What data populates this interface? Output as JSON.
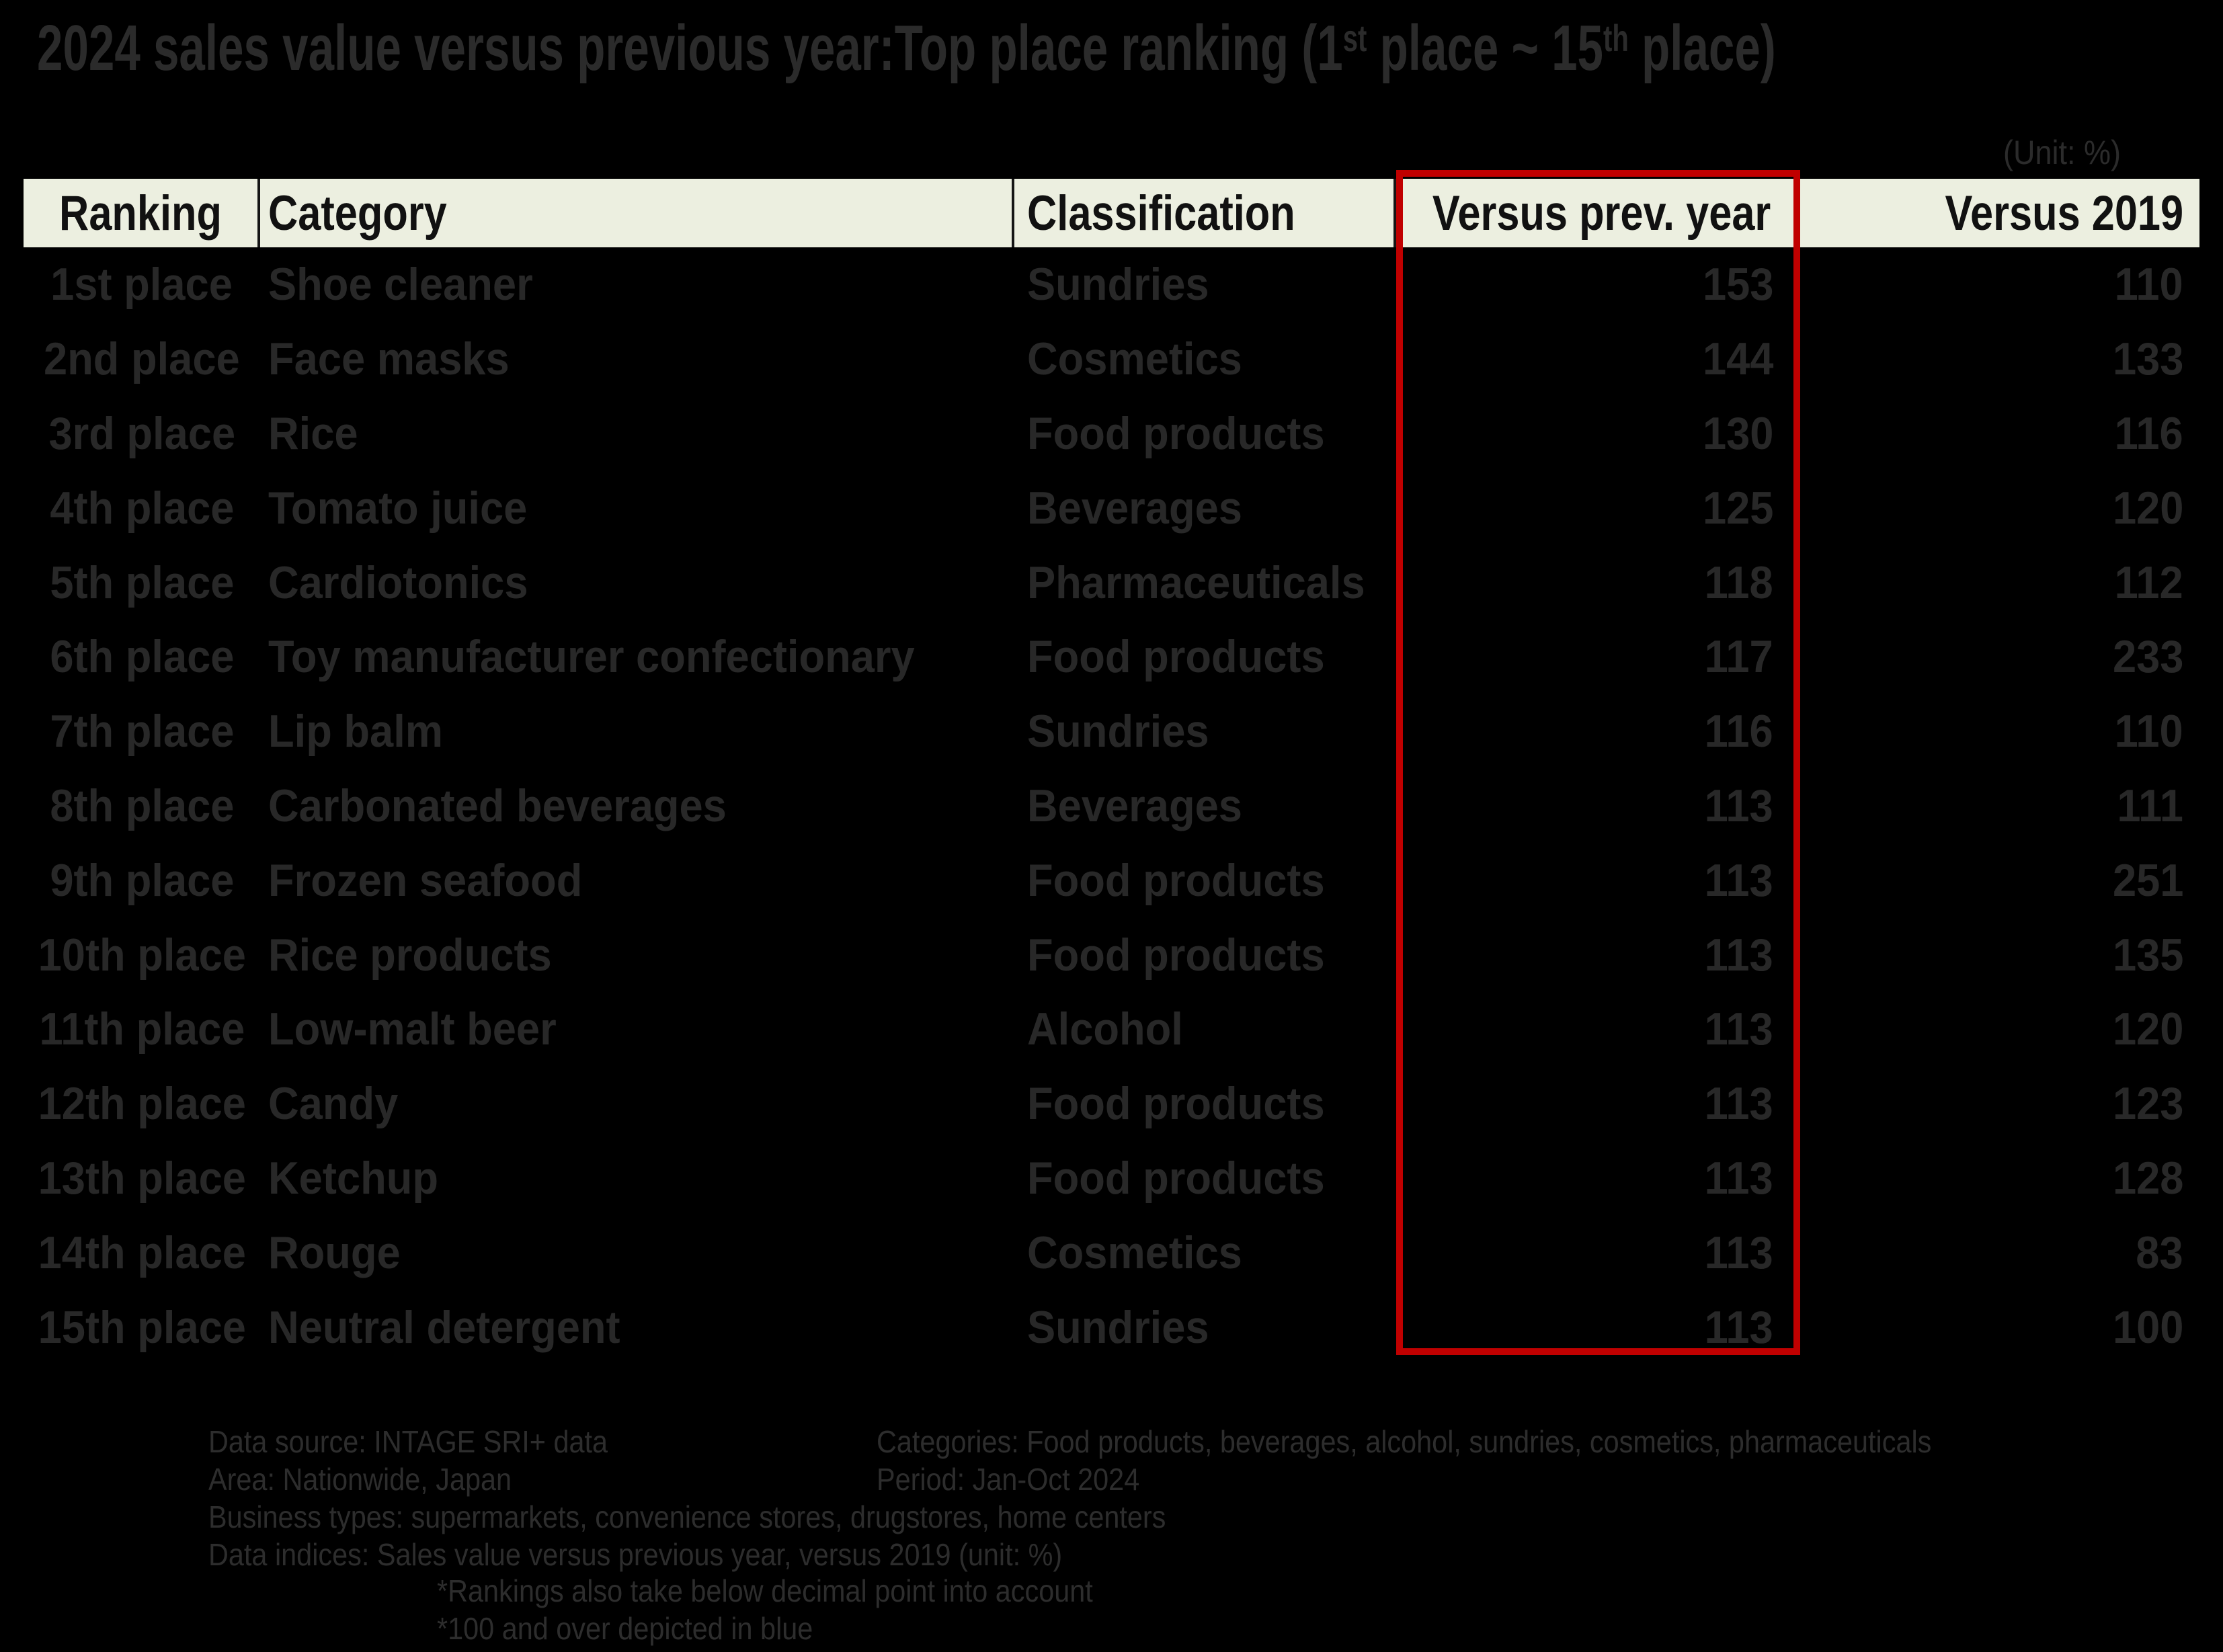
{
  "title": {
    "part1": "2024 sales value versus previous year:Top place ranking (1",
    "sup1": "st",
    "part2": " place ~ 15",
    "sup2": "th",
    "part3": " place)"
  },
  "unit_note": "(Unit: %)",
  "table": {
    "headers": [
      "Ranking",
      "Category",
      "Classification",
      "Versus prev. year",
      "Versus 2019"
    ],
    "rows": [
      {
        "ranking": "1st place",
        "category": "Shoe cleaner",
        "classification": "Sundries",
        "versus_prev_year": "153",
        "versus_2019": "110"
      },
      {
        "ranking": "2nd place",
        "category": "Face masks",
        "classification": "Cosmetics",
        "versus_prev_year": "144",
        "versus_2019": "133"
      },
      {
        "ranking": "3rd place",
        "category": "Rice",
        "classification": "Food products",
        "versus_prev_year": "130",
        "versus_2019": "116"
      },
      {
        "ranking": "4th place",
        "category": "Tomato juice",
        "classification": "Beverages",
        "versus_prev_year": "125",
        "versus_2019": "120"
      },
      {
        "ranking": "5th place",
        "category": "Cardiotonics",
        "classification": "Pharmaceuticals",
        "versus_prev_year": "118",
        "versus_2019": "112"
      },
      {
        "ranking": "6th place",
        "category": "Toy manufacturer confectionary",
        "classification": "Food products",
        "versus_prev_year": "117",
        "versus_2019": "233"
      },
      {
        "ranking": "7th place",
        "category": "Lip balm",
        "classification": "Sundries",
        "versus_prev_year": "116",
        "versus_2019": "110"
      },
      {
        "ranking": "8th place",
        "category": "Carbonated beverages",
        "classification": "Beverages",
        "versus_prev_year": "113",
        "versus_2019": "111"
      },
      {
        "ranking": "9th place",
        "category": "Frozen seafood",
        "classification": "Food products",
        "versus_prev_year": "113",
        "versus_2019": "251"
      },
      {
        "ranking": "10th place",
        "category": "Rice products",
        "classification": "Food products",
        "versus_prev_year": "113",
        "versus_2019": "135"
      },
      {
        "ranking": "11th place",
        "category": "Low-malt beer",
        "classification": "Alcohol",
        "versus_prev_year": "113",
        "versus_2019": "120"
      },
      {
        "ranking": "12th place",
        "category": "Candy",
        "classification": "Food products",
        "versus_prev_year": "113",
        "versus_2019": "123"
      },
      {
        "ranking": "13th place",
        "category": "Ketchup",
        "classification": "Food products",
        "versus_prev_year": "113",
        "versus_2019": "128"
      },
      {
        "ranking": "14th place",
        "category": "Rouge",
        "classification": "Cosmetics",
        "versus_prev_year": "113",
        "versus_2019": "83"
      },
      {
        "ranking": "15th place",
        "category": "Neutral detergent",
        "classification": "Sundries",
        "versus_prev_year": "113",
        "versus_2019": "100"
      }
    ]
  },
  "highlight": {
    "highlighted_column": "Versus prev. year",
    "border_color": "#C00000"
  },
  "footer": {
    "left": [
      "Data source: INTAGE SRI+ data",
      "Area: Nationwide, Japan",
      "Business types: supermarkets, convenience stores, drugstores, home centers",
      "Data indices: Sales value versus previous year, versus 2019 (unit: %)"
    ],
    "right": [
      "Categories: Food products, beverages, alcohol, sundries, cosmetics, pharmaceuticals",
      "Period: Jan-Oct 2024"
    ],
    "notes": [
      "*Rankings also take below decimal point into account",
      "*100 and over depicted in blue"
    ]
  },
  "colors": {
    "background": "#000000",
    "header_background": "#ECEFE0",
    "table_text": "#282828",
    "header_text": "#111111",
    "highlight_border": "#C00000"
  },
  "chart_data": {
    "type": "table",
    "title": "2024 sales value versus previous year:Top place ranking (1st place ~ 15th place)",
    "unit": "%",
    "highlighted_column": "Versus prev. year",
    "columns": [
      "Ranking",
      "Category",
      "Classification",
      "Versus prev. year",
      "Versus 2019"
    ],
    "rows": [
      [
        "1st place",
        "Shoe cleaner",
        "Sundries",
        153,
        110
      ],
      [
        "2nd place",
        "Face masks",
        "Cosmetics",
        144,
        133
      ],
      [
        "3rd place",
        "Rice",
        "Food products",
        130,
        116
      ],
      [
        "4th place",
        "Tomato juice",
        "Beverages",
        125,
        120
      ],
      [
        "5th place",
        "Cardiotonics",
        "Pharmaceuticals",
        118,
        112
      ],
      [
        "6th place",
        "Toy manufacturer confectionary",
        "Food products",
        117,
        233
      ],
      [
        "7th place",
        "Lip balm",
        "Sundries",
        116,
        110
      ],
      [
        "8th place",
        "Carbonated beverages",
        "Beverages",
        113,
        111
      ],
      [
        "9th place",
        "Frozen seafood",
        "Food products",
        113,
        251
      ],
      [
        "10th place",
        "Rice products",
        "Food products",
        113,
        135
      ],
      [
        "11th place",
        "Low-malt beer",
        "Alcohol",
        113,
        120
      ],
      [
        "12th place",
        "Candy",
        "Food products",
        113,
        123
      ],
      [
        "13th place",
        "Ketchup",
        "Food products",
        113,
        128
      ],
      [
        "14th place",
        "Rouge",
        "Cosmetics",
        113,
        83
      ],
      [
        "15th place",
        "Neutral detergent",
        "Sundries",
        113,
        100
      ]
    ],
    "notes": [
      "Rankings also take below decimal point into account",
      "100 and over depicted in blue"
    ]
  }
}
